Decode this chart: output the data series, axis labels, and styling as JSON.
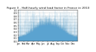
{
  "title": "Figure 3 - Half-hourly wind load factor in France in 2013",
  "ylim": [
    0,
    1.0
  ],
  "yticks": [
    0.0,
    0.1,
    0.2,
    0.3,
    0.4,
    0.5,
    0.6,
    0.7,
    0.8,
    0.9,
    1.0
  ],
  "n_points": 17520,
  "bar_color": "#5ba3d0",
  "background_color": "#ffffff",
  "grid_color": "#bbbbbb",
  "title_fontsize": 3.2,
  "tick_fontsize": 2.5,
  "seed": 42,
  "month_starts": [
    0,
    1488,
    2832,
    4320,
    5760,
    7248,
    8688,
    10176,
    11664,
    13104,
    14592,
    16032
  ],
  "month_labels": [
    "Jan",
    "Feb",
    "Mar",
    "Apr",
    "May",
    "Jun",
    "Jul",
    "Aug",
    "Sep",
    "Oct",
    "Nov",
    "Dec"
  ]
}
